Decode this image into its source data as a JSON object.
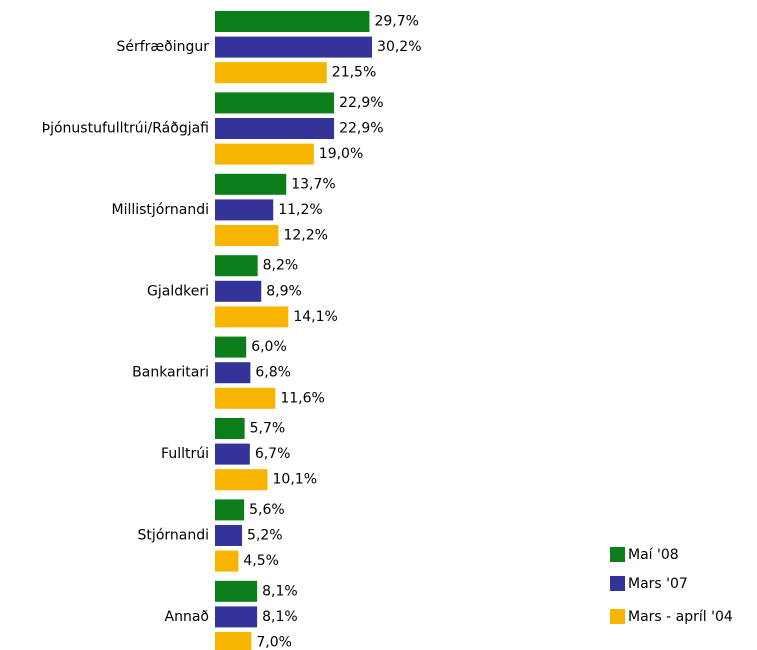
{
  "chart_data": {
    "type": "hbar",
    "categories": [
      "Sérfræðingur",
      "Þjónustufulltrúi/Ráðgjafi",
      "Millistjórnandi",
      "Gjaldkeri",
      "Bankaritari",
      "Fulltrúi",
      "Stjórnandi",
      "Annað"
    ],
    "series": [
      {
        "name": "Maí '08",
        "color": "#0b7e1b",
        "values": [
          29.7,
          22.9,
          13.7,
          8.2,
          6.0,
          5.7,
          5.6,
          8.1
        ],
        "value_labels": [
          "29,7%",
          "22,9%",
          "13,7%",
          "8,2%",
          "6,0%",
          "5,7%",
          "5,6%",
          "8,1%"
        ]
      },
      {
        "name": "Mars '07",
        "color": "#333399",
        "values": [
          30.2,
          22.9,
          11.2,
          8.9,
          6.8,
          6.7,
          5.2,
          8.1
        ],
        "value_labels": [
          "30,2%",
          "22,9%",
          "11,2%",
          "8,9%",
          "6,8%",
          "6,7%",
          "5,2%",
          "8,1%"
        ]
      },
      {
        "name": "Mars - apríl '04",
        "color": "#f7b500",
        "values": [
          21.5,
          19.0,
          12.2,
          14.1,
          11.6,
          10.1,
          4.5,
          7.0
        ],
        "value_labels": [
          "21,5%",
          "19,0%",
          "12,2%",
          "14,1%",
          "11,6%",
          "10,1%",
          "4,5%",
          "7,0%"
        ]
      }
    ],
    "legend": "bottom-right"
  }
}
